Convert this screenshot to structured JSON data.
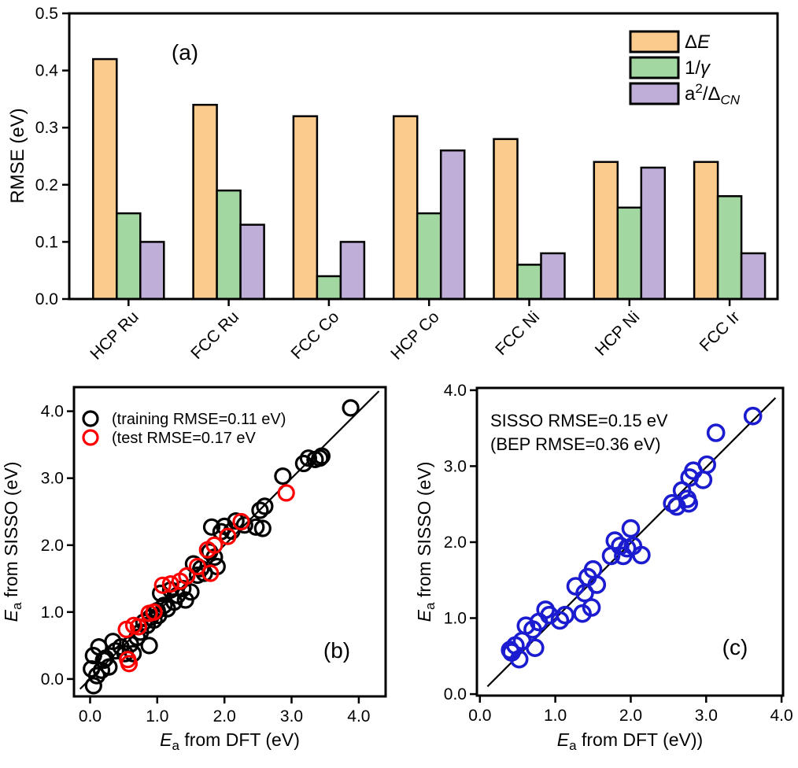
{
  "chart_data": [
    {
      "type": "bar",
      "panel_label": "(a)",
      "ylabel": "RMSE (eV)",
      "ylim": [
        0,
        0.5
      ],
      "yticks": [
        "0.0",
        "0.1",
        "0.2",
        "0.3",
        "0.4",
        "0.5"
      ],
      "categories": [
        "HCP Ru",
        "FCC Ru",
        "FCC Co",
        "HCP Co",
        "FCC Ni",
        "HCP Ni",
        "FCC Ir"
      ],
      "grid": false,
      "legend_position": "top-right",
      "legend": [
        {
          "label": "ΔE",
          "label_rich": [
            {
              "t": "Δ"
            },
            {
              "t": "E",
              "i": true
            }
          ],
          "color": "#FBCB8E"
        },
        {
          "label": "1/γ",
          "label_rich": [
            {
              "t": "1/"
            },
            {
              "t": "γ",
              "i": true
            }
          ],
          "color": "#A2D7A2"
        },
        {
          "label": "a²/ΔCN",
          "label_rich": [
            {
              "t": "a"
            },
            {
              "t": "2",
              "sup": true
            },
            {
              "t": "/Δ"
            },
            {
              "t": "CN",
              "sub": true,
              "i": true
            }
          ],
          "color": "#BFAED8"
        }
      ],
      "series": [
        {
          "name": "ΔE",
          "color": "#FBCB8E",
          "values": [
            0.42,
            0.34,
            0.32,
            0.32,
            0.28,
            0.24,
            0.24
          ]
        },
        {
          "name": "1/γ",
          "color": "#A2D7A2",
          "values": [
            0.15,
            0.19,
            0.04,
            0.15,
            0.06,
            0.16,
            0.18
          ]
        },
        {
          "name": "a²/ΔCN",
          "color": "#BFAED8",
          "values": [
            0.1,
            0.13,
            0.1,
            0.26,
            0.08,
            0.23,
            0.08
          ]
        }
      ]
    },
    {
      "type": "scatter",
      "panel_label": "(b)",
      "xlabel": "Ea from DFT (eV)",
      "xlabel_rich": [
        {
          "t": "E",
          "i": true
        },
        {
          "t": "a",
          "sub": true
        },
        {
          "t": " from DFT (eV)"
        }
      ],
      "ylabel": "Ea from SISSO (eV)",
      "ylabel_rich": [
        {
          "t": "E",
          "i": true
        },
        {
          "t": "a",
          "sub": true
        },
        {
          "t": " from SISSO (eV)"
        }
      ],
      "xlim": [
        -0.24,
        4.4
      ],
      "ylim": [
        -0.26,
        4.36
      ],
      "xticks": [
        "0.0",
        "1.0",
        "2.0",
        "3.0",
        "4.0"
      ],
      "yticks": [
        "0.0",
        "1.0",
        "2.0",
        "3.0",
        "4.0"
      ],
      "grid": false,
      "legend_position": "top-left",
      "identity_line": [
        [
          -0.15,
          -0.15
        ],
        [
          4.3,
          4.3
        ]
      ],
      "series": [
        {
          "name": "(training RMSE=0.11 eV)",
          "color": "#000000",
          "points": [
            [
              0.05,
              -0.1
            ],
            [
              0.02,
              0.15
            ],
            [
              0.05,
              0.35
            ],
            [
              0.1,
              0.05
            ],
            [
              0.13,
              0.48
            ],
            [
              0.17,
              0.13
            ],
            [
              0.2,
              0.28
            ],
            [
              0.23,
              0.31
            ],
            [
              0.28,
              0.18
            ],
            [
              0.34,
              0.56
            ],
            [
              0.38,
              0.42
            ],
            [
              0.46,
              0.48
            ],
            [
              0.52,
              0.38
            ],
            [
              0.6,
              0.52
            ],
            [
              0.64,
              0.38
            ],
            [
              0.7,
              0.62
            ],
            [
              0.75,
              0.7
            ],
            [
              0.8,
              0.85
            ],
            [
              0.85,
              0.8
            ],
            [
              0.88,
              0.5
            ],
            [
              0.9,
              0.92
            ],
            [
              0.95,
              0.88
            ],
            [
              1.0,
              1.02
            ],
            [
              1.02,
              0.95
            ],
            [
              1.05,
              1.28
            ],
            [
              1.1,
              1.1
            ],
            [
              1.15,
              1.05
            ],
            [
              1.2,
              1.33
            ],
            [
              1.25,
              1.15
            ],
            [
              1.3,
              1.25
            ],
            [
              1.38,
              1.35
            ],
            [
              1.42,
              1.18
            ],
            [
              1.5,
              1.3
            ],
            [
              1.54,
              1.72
            ],
            [
              1.6,
              1.55
            ],
            [
              1.65,
              1.65
            ],
            [
              1.7,
              1.58
            ],
            [
              1.78,
              1.9
            ],
            [
              1.81,
              2.27
            ],
            [
              1.85,
              1.82
            ],
            [
              1.89,
              1.68
            ],
            [
              1.95,
              2.2
            ],
            [
              2.0,
              2.28
            ],
            [
              2.11,
              2.21
            ],
            [
              2.17,
              2.36
            ],
            [
              2.3,
              2.3
            ],
            [
              2.47,
              2.27
            ],
            [
              2.53,
              2.52
            ],
            [
              2.57,
              2.25
            ],
            [
              2.6,
              2.58
            ],
            [
              2.87,
              3.03
            ],
            [
              3.18,
              3.22
            ],
            [
              3.25,
              3.3
            ],
            [
              3.35,
              3.28
            ],
            [
              3.42,
              3.3
            ],
            [
              3.45,
              3.33
            ],
            [
              3.88,
              4.05
            ]
          ]
        },
        {
          "name": "(test RMSE=0.17 eV",
          "color": "#FF0000",
          "points": [
            [
              0.54,
              0.74
            ],
            [
              0.56,
              0.29
            ],
            [
              0.58,
              0.23
            ],
            [
              0.65,
              0.8
            ],
            [
              0.72,
              0.78
            ],
            [
              0.88,
              0.98
            ],
            [
              0.95,
              1.0
            ],
            [
              1.08,
              1.4
            ],
            [
              1.2,
              1.42
            ],
            [
              1.34,
              1.46
            ],
            [
              1.44,
              1.54
            ],
            [
              1.6,
              1.68
            ],
            [
              1.75,
              1.93
            ],
            [
              1.79,
              1.58
            ],
            [
              1.85,
              2.0
            ],
            [
              2.05,
              2.13
            ],
            [
              2.25,
              2.35
            ],
            [
              2.92,
              2.78
            ]
          ]
        }
      ]
    },
    {
      "type": "scatter",
      "panel_label": "(c)",
      "xlabel": "Ea from DFT (eV))",
      "xlabel_rich": [
        {
          "t": "E",
          "i": true
        },
        {
          "t": "a",
          "sub": true
        },
        {
          "t": " from DFT (eV))"
        }
      ],
      "ylabel": "Ea from SISSO (eV)",
      "ylabel_rich": [
        {
          "t": "E",
          "i": true
        },
        {
          "t": "a",
          "sub": true
        },
        {
          "t": " from SISSO (eV)"
        }
      ],
      "xlim": [
        -0.04,
        4.02
      ],
      "ylim": [
        -0.02,
        4.03
      ],
      "xticks": [
        "0.0",
        "1.0",
        "2.0",
        "3.0",
        "4.0"
      ],
      "yticks": [
        "0.0",
        "1.0",
        "2.0",
        "3.0",
        "4.0"
      ],
      "grid": false,
      "annotations": [
        "SISSO RMSE=0.15 eV",
        "(BEP RMSE=0.36 eV)"
      ],
      "identity_line": [
        [
          0.1,
          0.1
        ],
        [
          3.92,
          3.9
        ]
      ],
      "series": [
        {
          "name": "SISSO",
          "color": "#1B1BD0",
          "points": [
            [
              0.4,
              0.58
            ],
            [
              0.42,
              0.55
            ],
            [
              0.47,
              0.64
            ],
            [
              0.52,
              0.46
            ],
            [
              0.56,
              0.7
            ],
            [
              0.61,
              0.9
            ],
            [
              0.7,
              0.85
            ],
            [
              0.73,
              0.61
            ],
            [
              0.78,
              0.95
            ],
            [
              0.87,
              1.11
            ],
            [
              0.92,
              1.04
            ],
            [
              1.06,
              0.97
            ],
            [
              1.13,
              1.04
            ],
            [
              1.27,
              1.42
            ],
            [
              1.36,
              1.06
            ],
            [
              1.39,
              1.33
            ],
            [
              1.43,
              1.54
            ],
            [
              1.48,
              1.14
            ],
            [
              1.5,
              1.64
            ],
            [
              1.55,
              1.44
            ],
            [
              1.74,
              1.82
            ],
            [
              1.79,
              2.02
            ],
            [
              1.86,
              1.95
            ],
            [
              1.9,
              1.82
            ],
            [
              1.95,
              1.92
            ],
            [
              2.0,
              2.18
            ],
            [
              2.03,
              1.95
            ],
            [
              2.14,
              1.83
            ],
            [
              2.55,
              2.51
            ],
            [
              2.61,
              2.47
            ],
            [
              2.68,
              2.68
            ],
            [
              2.75,
              2.57
            ],
            [
              2.77,
              2.51
            ],
            [
              2.78,
              2.85
            ],
            [
              2.83,
              2.94
            ],
            [
              2.96,
              2.82
            ],
            [
              3.01,
              3.02
            ],
            [
              3.13,
              3.44
            ],
            [
              3.62,
              3.66
            ]
          ]
        }
      ]
    }
  ]
}
